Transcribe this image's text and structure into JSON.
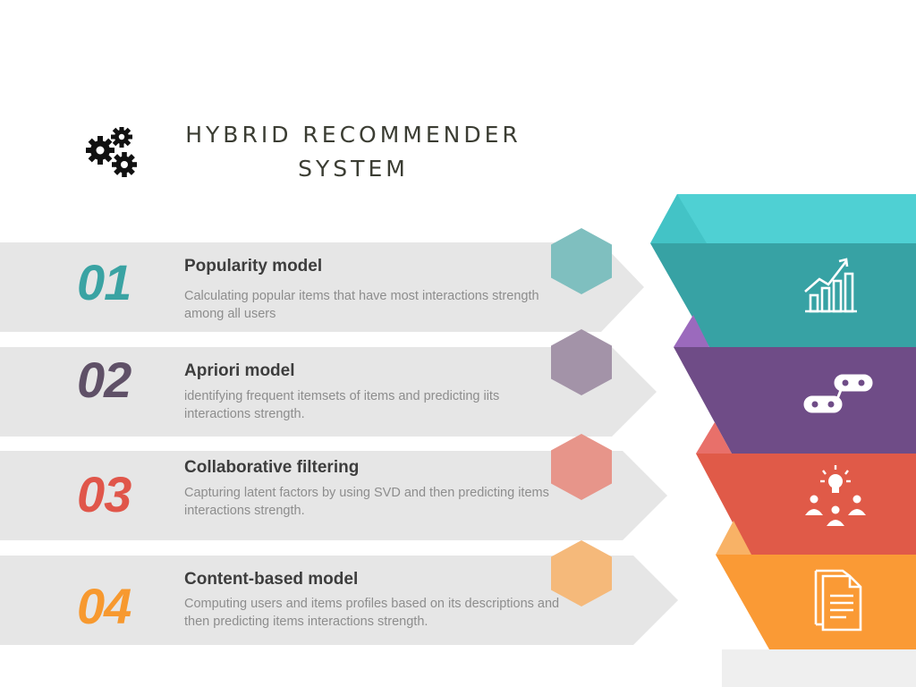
{
  "header": {
    "title_line1": "HYBRID RECOMMENDER",
    "title_line2": "SYSTEM",
    "icon": "gears-icon"
  },
  "steps": [
    {
      "number": "01",
      "title": "Popularity model",
      "description": "Calculating popular items that have most interactions strength among all users",
      "color": "#3aa3a3",
      "hex_color": "#7fbfbf",
      "funnel_color": "#37a2a4",
      "icon": "bar-chart-growth-icon"
    },
    {
      "number": "02",
      "title": "Apriori model",
      "description": "identifying frequent itemsets of items and predicting iits interactions strength.",
      "color": "#5f5067",
      "hex_color": "#a393a8",
      "funnel_color": "#6f4c87",
      "icon": "linked-items-icon"
    },
    {
      "number": "03",
      "title": "Collaborative filtering",
      "description": "Capturing latent factors by using SVD and then predicting items interactions strength.",
      "color": "#e0564a",
      "hex_color": "#e7958a",
      "funnel_color": "#e05a48",
      "icon": "idea-people-icon"
    },
    {
      "number": "04",
      "title": "Content-based model",
      "description": "Computing users and items profiles based on its descriptions and then predicting items interactions strength.",
      "color": "#f7992f",
      "hex_color": "#f5b97a",
      "funnel_color": "#fa9a35",
      "icon": "document-icon"
    }
  ]
}
